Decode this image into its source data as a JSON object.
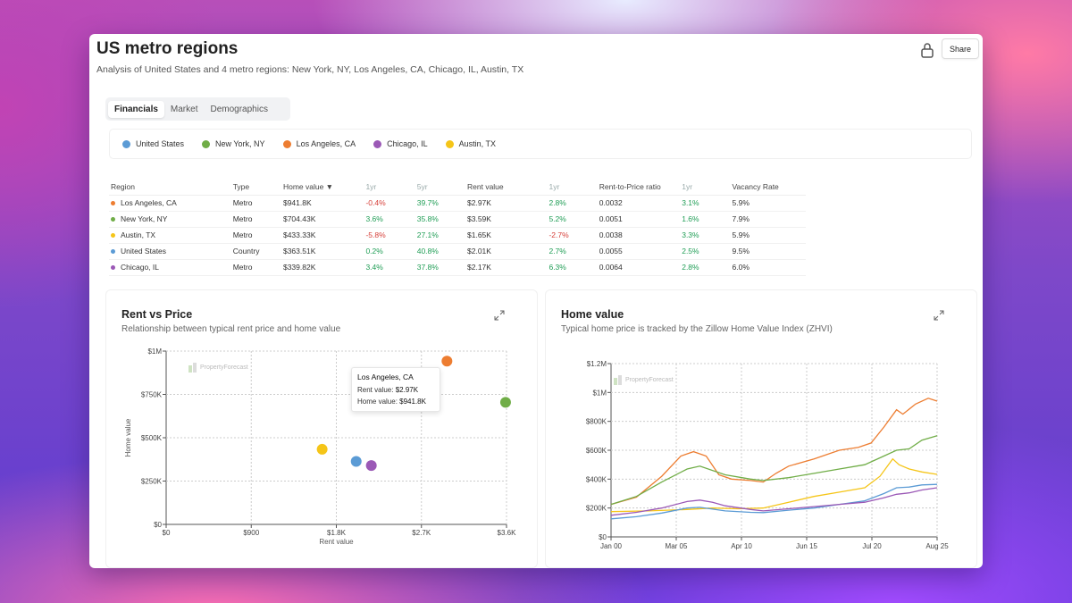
{
  "header": {
    "title": "US metro regions",
    "subtitle": "Analysis of United States and 4 metro regions: New York, NY, Los Angeles, CA, Chicago, IL, Austin, TX",
    "share_label": "Share",
    "lock_icon": "lock-icon"
  },
  "tabs": [
    {
      "label": "Financials",
      "active": true
    },
    {
      "label": "Market",
      "active": false
    },
    {
      "label": "Demographics",
      "active": false
    }
  ],
  "legend": [
    {
      "label": "United States",
      "color": "#5b9bd5"
    },
    {
      "label": "New York, NY",
      "color": "#70ad47"
    },
    {
      "label": "Los Angeles, CA",
      "color": "#ed7d31"
    },
    {
      "label": "Chicago, IL",
      "color": "#9b59b6"
    },
    {
      "label": "Austin, TX",
      "color": "#f5c518"
    }
  ],
  "table": {
    "columns": [
      "Region",
      "Type",
      "Home value ▼",
      "1yr",
      "5yr",
      "Rent value",
      "1yr",
      "Rent-to-Price ratio",
      "1yr",
      "Vacancy Rate"
    ],
    "rows": [
      {
        "region": "Los Angeles, CA",
        "color": "#ed7d31",
        "type": "Metro",
        "home_value": "$941.8K",
        "hv_1yr": "-0.4%",
        "hv_5yr": "39.7%",
        "rent_value": "$2.97K",
        "rent_1yr": "2.8%",
        "ratio": "0.0032",
        "ratio_1yr": "3.1%",
        "vacancy": "5.9%"
      },
      {
        "region": "New York, NY",
        "color": "#70ad47",
        "type": "Metro",
        "home_value": "$704.43K",
        "hv_1yr": "3.6%",
        "hv_5yr": "35.8%",
        "rent_value": "$3.59K",
        "rent_1yr": "5.2%",
        "ratio": "0.0051",
        "ratio_1yr": "1.6%",
        "vacancy": "7.9%"
      },
      {
        "region": "Austin, TX",
        "color": "#f5c518",
        "type": "Metro",
        "home_value": "$433.33K",
        "hv_1yr": "-5.8%",
        "hv_5yr": "27.1%",
        "rent_value": "$1.65K",
        "rent_1yr": "-2.7%",
        "ratio": "0.0038",
        "ratio_1yr": "3.3%",
        "vacancy": "5.9%"
      },
      {
        "region": "United States",
        "color": "#5b9bd5",
        "type": "Country",
        "home_value": "$363.51K",
        "hv_1yr": "0.2%",
        "hv_5yr": "40.8%",
        "rent_value": "$2.01K",
        "rent_1yr": "2.7%",
        "ratio": "0.0055",
        "ratio_1yr": "2.5%",
        "vacancy": "9.5%"
      },
      {
        "region": "Chicago, IL",
        "color": "#9b59b6",
        "type": "Metro",
        "home_value": "$339.82K",
        "hv_1yr": "3.4%",
        "hv_5yr": "37.8%",
        "rent_value": "$2.17K",
        "rent_1yr": "6.3%",
        "ratio": "0.0064",
        "ratio_1yr": "2.8%",
        "vacancy": "6.0%"
      }
    ]
  },
  "rent_vs_price": {
    "title": "Rent vs Price",
    "subtitle": "Relationship between typical rent price and home value",
    "watermark": "PropertyForecast",
    "tooltip": {
      "title": "Los Angeles, CA",
      "rent_label": "Rent value:",
      "rent_value": "$2.97K",
      "home_label": "Home value:",
      "home_value": "$941.8K"
    }
  },
  "home_value_chart": {
    "title": "Home value",
    "subtitle": "Typical home price is tracked by the Zillow Home Value Index (ZHVI)",
    "watermark": "PropertyForecast"
  },
  "chart_data": [
    {
      "type": "scatter",
      "xlabel": "Rent value",
      "ylabel": "Home value",
      "xlim": [
        0,
        3600
      ],
      "ylim": [
        0,
        1000000
      ],
      "xticks": [
        "$0",
        "$900",
        "$1.8K",
        "$2.7K",
        "$3.6K"
      ],
      "yticks": [
        "$0",
        "$250K",
        "$500K",
        "$750K",
        "$1M"
      ],
      "grid": true,
      "series": [
        {
          "name": "United States",
          "color": "#5b9bd5",
          "x": 2010,
          "y": 363510
        },
        {
          "name": "New York, NY",
          "color": "#70ad47",
          "x": 3590,
          "y": 704430
        },
        {
          "name": "Los Angeles, CA",
          "color": "#ed7d31",
          "x": 2970,
          "y": 941800
        },
        {
          "name": "Chicago, IL",
          "color": "#9b59b6",
          "x": 2170,
          "y": 339820
        },
        {
          "name": "Austin, TX",
          "color": "#f5c518",
          "x": 1650,
          "y": 433330
        }
      ]
    },
    {
      "type": "line",
      "xticks": [
        "Jan 00",
        "Mar 05",
        "Apr 10",
        "Jun 15",
        "Jul 20",
        "Aug 25"
      ],
      "yticks": [
        "$0",
        "$200K",
        "$400K",
        "$600K",
        "$800K",
        "$1M",
        "$1.2M"
      ],
      "xlim": [
        2000.0,
        2025.7
      ],
      "ylim": [
        0,
        1200000
      ],
      "grid": true,
      "series": [
        {
          "name": "Los Angeles, CA",
          "color": "#ed7d31",
          "points": [
            [
              2000,
              225000
            ],
            [
              2002,
              275000
            ],
            [
              2004,
              420000
            ],
            [
              2005.5,
              560000
            ],
            [
              2006.5,
              590000
            ],
            [
              2007.5,
              560000
            ],
            [
              2008.5,
              430000
            ],
            [
              2009.5,
              400000
            ],
            [
              2011,
              390000
            ],
            [
              2012,
              380000
            ],
            [
              2013,
              440000
            ],
            [
              2014,
              490000
            ],
            [
              2016,
              540000
            ],
            [
              2018,
              600000
            ],
            [
              2019.5,
              620000
            ],
            [
              2020.5,
              650000
            ],
            [
              2021.5,
              760000
            ],
            [
              2022.5,
              880000
            ],
            [
              2023,
              850000
            ],
            [
              2024,
              920000
            ],
            [
              2025,
              960000
            ],
            [
              2025.7,
              940000
            ]
          ]
        },
        {
          "name": "New York, NY",
          "color": "#70ad47",
          "points": [
            [
              2000,
              225000
            ],
            [
              2002,
              280000
            ],
            [
              2004,
              380000
            ],
            [
              2006,
              470000
            ],
            [
              2007,
              490000
            ],
            [
              2009,
              430000
            ],
            [
              2011,
              400000
            ],
            [
              2012,
              390000
            ],
            [
              2014,
              410000
            ],
            [
              2016,
              440000
            ],
            [
              2018,
              470000
            ],
            [
              2020,
              500000
            ],
            [
              2021.5,
              560000
            ],
            [
              2022.5,
              600000
            ],
            [
              2023.5,
              610000
            ],
            [
              2024.5,
              670000
            ],
            [
              2025.7,
              700000
            ]
          ]
        },
        {
          "name": "Austin, TX",
          "color": "#f5c518",
          "points": [
            [
              2000,
              175000
            ],
            [
              2003,
              180000
            ],
            [
              2006,
              190000
            ],
            [
              2008,
              200000
            ],
            [
              2010,
              195000
            ],
            [
              2012,
              200000
            ],
            [
              2014,
              240000
            ],
            [
              2016,
              280000
            ],
            [
              2018,
              310000
            ],
            [
              2020,
              340000
            ],
            [
              2021.2,
              420000
            ],
            [
              2022.2,
              540000
            ],
            [
              2022.7,
              500000
            ],
            [
              2023.5,
              470000
            ],
            [
              2024.5,
              450000
            ],
            [
              2025.7,
              433000
            ]
          ]
        },
        {
          "name": "United States",
          "color": "#5b9bd5",
          "points": [
            [
              2000,
              125000
            ],
            [
              2002,
              140000
            ],
            [
              2004,
              165000
            ],
            [
              2006,
              200000
            ],
            [
              2007,
              205000
            ],
            [
              2009,
              180000
            ],
            [
              2011,
              170000
            ],
            [
              2012,
              168000
            ],
            [
              2014,
              185000
            ],
            [
              2016,
              200000
            ],
            [
              2018,
              225000
            ],
            [
              2020,
              250000
            ],
            [
              2021.5,
              300000
            ],
            [
              2022.5,
              340000
            ],
            [
              2023.5,
              345000
            ],
            [
              2024.5,
              360000
            ],
            [
              2025.7,
              363500
            ]
          ]
        },
        {
          "name": "Chicago, IL",
          "color": "#9b59b6",
          "points": [
            [
              2000,
              150000
            ],
            [
              2002,
              170000
            ],
            [
              2004,
              200000
            ],
            [
              2006,
              245000
            ],
            [
              2007,
              255000
            ],
            [
              2008,
              240000
            ],
            [
              2009,
              215000
            ],
            [
              2011,
              190000
            ],
            [
              2012,
              180000
            ],
            [
              2014,
              195000
            ],
            [
              2016,
              210000
            ],
            [
              2018,
              225000
            ],
            [
              2020,
              240000
            ],
            [
              2021.5,
              270000
            ],
            [
              2022.5,
              295000
            ],
            [
              2023.5,
              305000
            ],
            [
              2024.5,
              325000
            ],
            [
              2025.7,
              340000
            ]
          ]
        }
      ]
    }
  ]
}
